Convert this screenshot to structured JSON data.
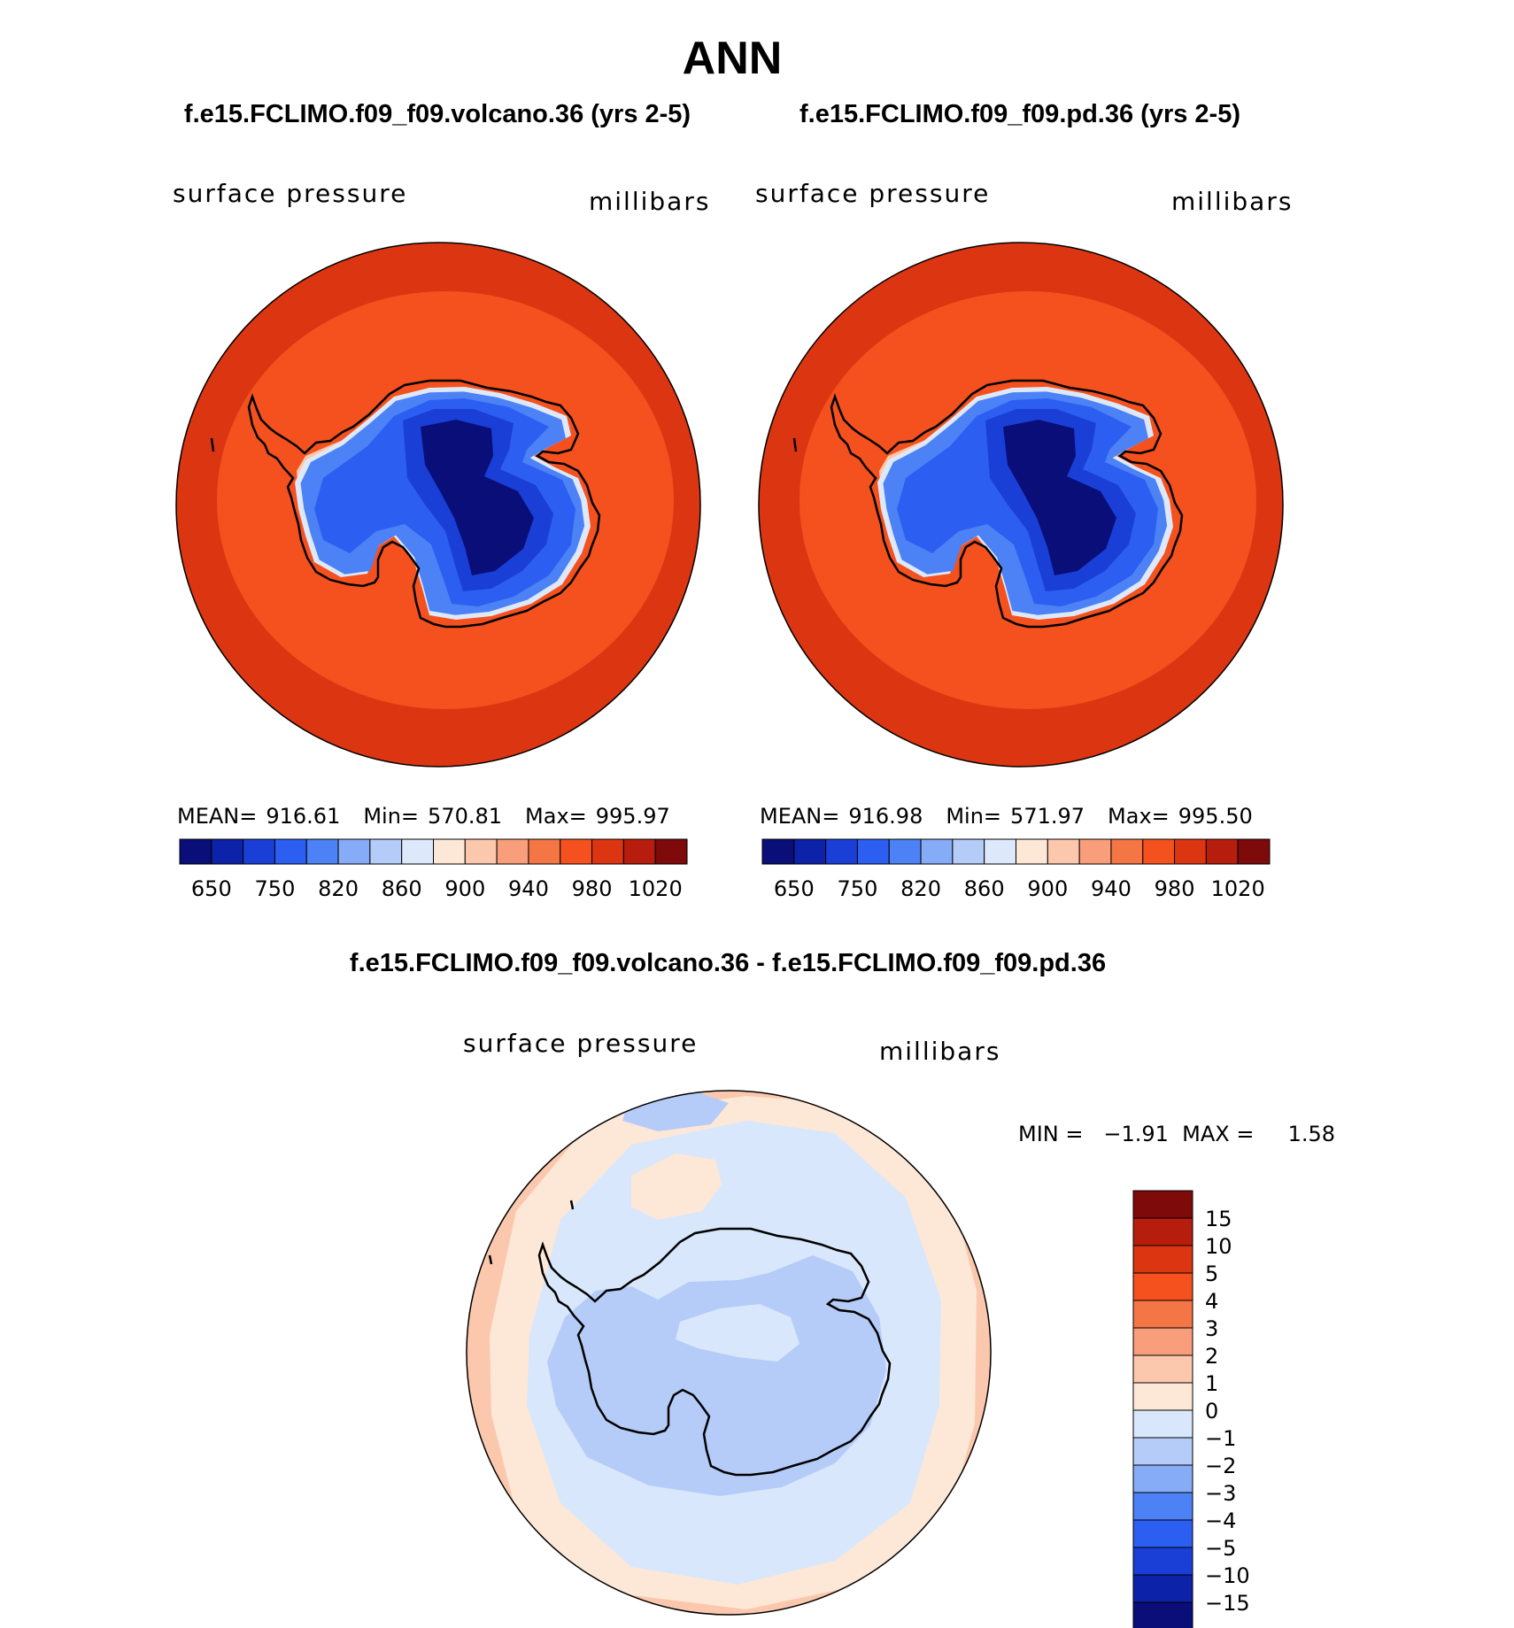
{
  "chart_data": {
    "type": "polar-contour-map",
    "title": "ANN",
    "panels": [
      {
        "id": "test",
        "case_title": "f.e15.FCLIMO.f09_f09.volcano.36 (yrs 2-5)",
        "variable": "surface pressure",
        "units": "millibars",
        "stats": {
          "mean_label": "MEAN=",
          "mean": "916.61",
          "min_label": "Min=",
          "min": "570.81",
          "max_label": "Max=",
          "max": "995.97"
        },
        "colorbar_ticks": [
          "650",
          "750",
          "820",
          "860",
          "900",
          "940",
          "980",
          "1020"
        ],
        "ocean_inner_value_band": "980-1000",
        "ocean_outer_value_band": "1000-1020"
      },
      {
        "id": "control",
        "case_title": "f.e15.FCLIMO.f09_f09.pd.36 (yrs 2-5)",
        "variable": "surface pressure",
        "units": "millibars",
        "stats": {
          "mean_label": "MEAN=",
          "mean": "916.98",
          "min_label": "Min=",
          "min": "571.97",
          "max_label": "Max=",
          "max": "995.50"
        },
        "colorbar_ticks": [
          "650",
          "750",
          "820",
          "860",
          "900",
          "940",
          "980",
          "1020"
        ],
        "ocean_inner_value_band": "980-1000",
        "ocean_outer_value_band": "1000-1020"
      },
      {
        "id": "difference",
        "case_title": "f.e15.FCLIMO.f09_f09.volcano.36 - f.e15.FCLIMO.f09_f09.pd.36",
        "variable": "surface pressure",
        "units": "millibars",
        "minmax_text": "MIN =   −1.91  MAX =     1.58",
        "min": -1.91,
        "max": 1.58,
        "colorbar_ticks": [
          "15",
          "10",
          "5",
          "4",
          "3",
          "2",
          "1",
          "0",
          "−1",
          "−2",
          "−3",
          "−4",
          "−5",
          "−10",
          "−15"
        ]
      }
    ],
    "abs_palette": [
      "#0a0e78",
      "#0c22a8",
      "#1a3fd6",
      "#2c5ef2",
      "#4c82f5",
      "#87acf7",
      "#b5ccf8",
      "#dde9fb",
      "#fde8d8",
      "#fbc8ad",
      "#f89e7a",
      "#f47645",
      "#f4511e",
      "#dc3511",
      "#b71d0c",
      "#7e0a0a"
    ],
    "diff_palette": [
      "#7e0a0a",
      "#b71d0c",
      "#dc3511",
      "#f4511e",
      "#f47645",
      "#f89e7a",
      "#fbc8ad",
      "#fde8d8",
      "#d8e7fb",
      "#b5ccf8",
      "#87acf7",
      "#4c82f5",
      "#2c5ef2",
      "#1a3fd6",
      "#0c22a8",
      "#0a0e78"
    ]
  }
}
